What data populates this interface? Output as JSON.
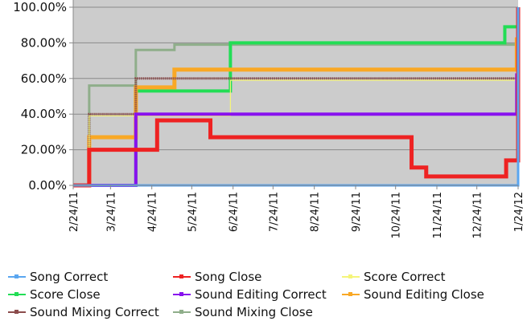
{
  "chart_data": {
    "type": "line",
    "step": true,
    "title": "",
    "xlabel": "",
    "ylabel": "",
    "ylim": [
      0,
      100
    ],
    "y_ticks": [
      "0.00%",
      "20.00%",
      "40.00%",
      "60.00%",
      "80.00%",
      "100.00%"
    ],
    "x_range": [
      "2011-02-24",
      "2012-01-24"
    ],
    "x_ticks": [
      "2/24/11",
      "3/24/11",
      "4/24/11",
      "5/24/11",
      "6/24/11",
      "7/24/11",
      "8/24/11",
      "9/24/11",
      "10/24/11",
      "11/24/11",
      "12/24/11",
      "1/24/12"
    ],
    "x_tick_dates": [
      "2011-02-24",
      "2011-03-24",
      "2011-04-24",
      "2011-05-24",
      "2011-06-24",
      "2011-07-24",
      "2011-08-24",
      "2011-09-24",
      "2011-10-24",
      "2011-11-24",
      "2011-12-24",
      "2012-01-24"
    ],
    "grid": true,
    "plot_background": "#cccccc",
    "legend_position": "bottom",
    "series": [
      {
        "name": "Song Correct",
        "color": "#5aa6f0",
        "points": [
          [
            "2011-02-24",
            0
          ],
          [
            "2012-01-23",
            0
          ],
          [
            "2012-01-24",
            100
          ]
        ]
      },
      {
        "name": "Song Close",
        "color": "#ee2222",
        "points": [
          [
            "2011-02-24",
            0
          ],
          [
            "2011-03-08",
            20
          ],
          [
            "2011-04-28",
            36.5
          ],
          [
            "2011-06-07",
            27
          ],
          [
            "2011-11-05",
            10
          ],
          [
            "2011-11-16",
            5
          ],
          [
            "2012-01-15",
            14
          ],
          [
            "2012-01-24",
            100
          ]
        ]
      },
      {
        "name": "Score Correct",
        "color": "#f5f57a",
        "points": [
          [
            "2011-02-24",
            0
          ],
          [
            "2011-03-08",
            39
          ],
          [
            "2011-06-22",
            59
          ],
          [
            "2012-01-24",
            100
          ]
        ]
      },
      {
        "name": "Score Close",
        "color": "#22dd55",
        "points": [
          [
            "2011-02-24",
            0
          ],
          [
            "2011-04-12",
            53
          ],
          [
            "2011-06-22",
            80
          ],
          [
            "2012-01-14",
            89
          ],
          [
            "2012-01-24",
            100
          ]
        ]
      },
      {
        "name": "Sound Editing Correct",
        "color": "#8811ee",
        "points": [
          [
            "2011-02-24",
            0
          ],
          [
            "2011-04-12",
            40
          ],
          [
            "2012-01-23",
            62
          ],
          [
            "2012-01-24",
            100
          ]
        ]
      },
      {
        "name": "Sound Editing Close",
        "color": "#f9a825",
        "points": [
          [
            "2011-02-24",
            0
          ],
          [
            "2011-03-08",
            27
          ],
          [
            "2011-04-12",
            55
          ],
          [
            "2011-05-11",
            65
          ],
          [
            "2012-01-23",
            82
          ],
          [
            "2012-01-24",
            100
          ]
        ]
      },
      {
        "name": "Sound Mixing Correct",
        "color": "#8b4c4c",
        "points": [
          [
            "2011-02-24",
            0
          ],
          [
            "2011-03-08",
            40
          ],
          [
            "2011-04-12",
            60
          ],
          [
            "2012-01-24",
            100
          ]
        ]
      },
      {
        "name": "Sound Mixing Close",
        "color": "#8fae8a",
        "points": [
          [
            "2011-02-24",
            0
          ],
          [
            "2011-03-08",
            56
          ],
          [
            "2011-04-12",
            76
          ],
          [
            "2011-05-11",
            79
          ],
          [
            "2012-01-24",
            100
          ]
        ]
      }
    ]
  }
}
